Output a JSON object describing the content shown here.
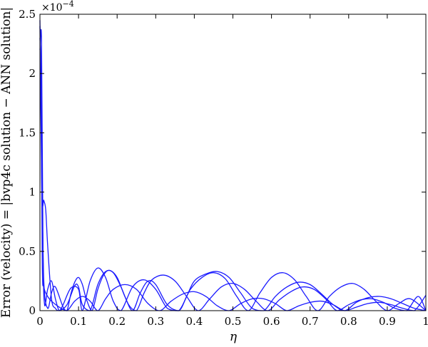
{
  "chart_data": {
    "type": "line",
    "title": "",
    "xlabel": "η",
    "ylabel": "Error (velocity) = |bvp4c solution − ANN solution|",
    "y_scale_note": "×10^−4",
    "y_multiplier_label": "×10",
    "y_multiplier_exponent": "−4",
    "xlim": [
      0,
      1
    ],
    "ylim": [
      0,
      2.5
    ],
    "y_unit_multiplier": 0.0001,
    "xticks": [
      0,
      0.1,
      0.2,
      0.3,
      0.4,
      0.5,
      0.6,
      0.7,
      0.8,
      0.9,
      1
    ],
    "xtick_labels": [
      "0",
      "0.1",
      "0.2",
      "0.3",
      "0.4",
      "0.5",
      "0.6",
      "0.7",
      "0.8",
      "0.9",
      "1"
    ],
    "yticks": [
      0,
      0.5,
      1,
      1.5,
      2,
      2.5
    ],
    "ytick_labels": [
      "0",
      "0.5",
      "1",
      "1.5",
      "2",
      "2.5"
    ],
    "grid": false,
    "legend": false,
    "series_color": "#1a1aff",
    "series": [
      {
        "x": [
          0,
          0.005,
          0.01,
          0.02,
          0.03,
          0.04,
          0.06,
          0.07,
          0.08,
          0.09,
          0.1,
          0.11,
          0.12,
          0.135,
          0.15,
          0.165,
          0.18,
          0.2,
          0.22,
          0.24,
          0.26,
          0.28,
          0.3,
          0.33,
          0.36,
          0.38,
          0.4,
          0.43,
          0.46,
          0.49,
          0.52,
          0.55,
          0.58,
          0.61,
          0.64,
          0.67,
          0.7,
          0.73,
          0.76,
          0.79,
          0.82,
          0.85,
          0.88,
          0.91,
          0.94,
          0.97,
          1
        ],
        "y": [
          2.45,
          1.2,
          0.25,
          0.02,
          0.15,
          0.2,
          0.03,
          0.0,
          0.14,
          0.24,
          0.28,
          0.22,
          0.1,
          0.0,
          0.18,
          0.3,
          0.34,
          0.28,
          0.12,
          0.0,
          0.15,
          0.25,
          0.22,
          0.05,
          0.0,
          0.12,
          0.25,
          0.31,
          0.33,
          0.28,
          0.15,
          0.02,
          0.0,
          0.12,
          0.2,
          0.24,
          0.22,
          0.14,
          0.05,
          0.0,
          0.07,
          0.11,
          0.12,
          0.1,
          0.06,
          0.02,
          0.0
        ]
      },
      {
        "x": [
          0,
          0.004,
          0.008,
          0.012,
          0.02,
          0.03,
          0.04,
          0.05,
          0.06,
          0.08,
          0.1,
          0.11,
          0.13,
          0.15,
          0.17,
          0.19,
          0.21,
          0.24,
          0.27,
          0.3,
          0.33,
          0.36,
          0.39,
          0.42,
          0.45,
          0.48,
          0.51,
          0.54,
          0.57,
          0.6,
          0.63,
          0.66,
          0.69,
          0.72,
          0.75,
          0.78,
          0.81,
          0.84,
          0.87,
          0.9,
          0.93,
          0.96,
          1
        ],
        "y": [
          2.2,
          2.3,
          0.5,
          0.05,
          0.18,
          0.25,
          0.1,
          0.0,
          0.05,
          0.19,
          0.18,
          0.0,
          0.25,
          0.36,
          0.28,
          0.08,
          0.0,
          0.2,
          0.26,
          0.18,
          0.02,
          0.0,
          0.18,
          0.28,
          0.32,
          0.27,
          0.12,
          0.0,
          0.15,
          0.28,
          0.32,
          0.26,
          0.12,
          0.0,
          0.12,
          0.2,
          0.23,
          0.18,
          0.08,
          0.0,
          0.06,
          0.1,
          0.0
        ]
      },
      {
        "x": [
          0,
          0.005,
          0.01,
          0.015,
          0.02,
          0.03,
          0.04,
          0.05,
          0.07,
          0.09,
          0.1,
          0.11,
          0.13,
          0.15,
          0.17,
          0.19,
          0.21,
          0.23,
          0.25,
          0.27,
          0.29,
          0.32,
          0.35,
          0.38,
          0.41,
          0.44,
          0.47,
          0.5,
          0.53,
          0.56,
          0.59,
          0.62,
          0.65,
          0.68,
          0.71,
          0.74,
          0.77,
          0.8,
          0.83,
          0.86,
          0.89,
          0.92,
          0.95,
          0.98,
          1
        ],
        "y": [
          2.4,
          1.0,
          0.93,
          0.85,
          0.55,
          0.1,
          0.02,
          0.0,
          0.05,
          0.21,
          0.2,
          0.05,
          0.0,
          0.22,
          0.33,
          0.32,
          0.2,
          0.05,
          0.0,
          0.15,
          0.26,
          0.3,
          0.25,
          0.12,
          0.0,
          0.1,
          0.2,
          0.23,
          0.18,
          0.08,
          0.0,
          0.09,
          0.16,
          0.2,
          0.18,
          0.1,
          0.0,
          0.05,
          0.09,
          0.1,
          0.07,
          0.02,
          0.0,
          0.12,
          0.0
        ]
      },
      {
        "x": [
          0,
          0.003,
          0.006,
          0.01,
          0.02,
          0.03,
          0.05,
          0.07,
          0.09,
          0.11,
          0.13,
          0.15,
          0.17,
          0.19,
          0.22,
          0.25,
          0.28,
          0.31,
          0.34,
          0.37,
          0.4,
          0.43,
          0.46,
          0.49,
          0.52,
          0.55,
          0.58,
          0.61,
          0.64,
          0.67,
          0.7,
          0.73,
          0.76,
          0.79,
          0.82,
          0.85,
          0.88,
          0.91,
          0.94,
          0.97,
          1
        ],
        "y": [
          2.3,
          1.9,
          0.4,
          0.2,
          0.12,
          0.08,
          0.03,
          0.0,
          0.08,
          0.12,
          0.08,
          0.0,
          0.1,
          0.18,
          0.22,
          0.18,
          0.06,
          0.0,
          0.08,
          0.14,
          0.16,
          0.12,
          0.04,
          0.0,
          0.06,
          0.1,
          0.1,
          0.06,
          0.0,
          0.04,
          0.07,
          0.08,
          0.05,
          0.0,
          0.03,
          0.06,
          0.07,
          0.05,
          0.02,
          0.0,
          0.13
        ]
      }
    ]
  }
}
